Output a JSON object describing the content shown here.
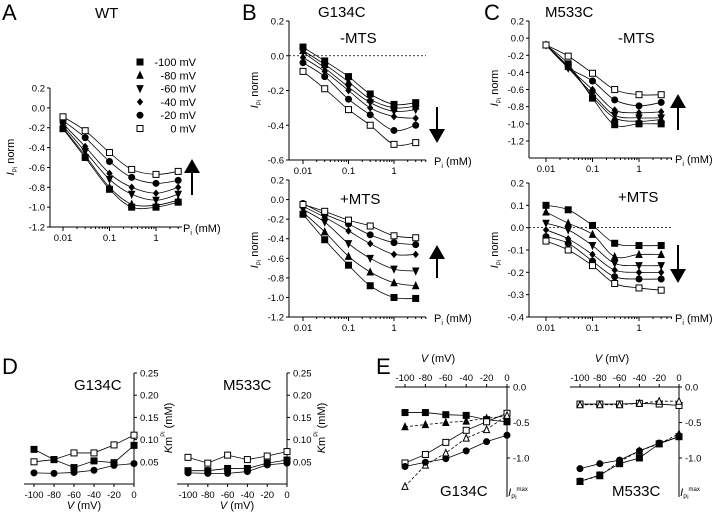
{
  "panel_letters": [
    "A",
    "B",
    "C",
    "D",
    "E"
  ],
  "titles": {
    "A": "WT",
    "B": "G134C",
    "C": "M533C",
    "B_top": "-MTS",
    "B_bottom": "+MTS",
    "C_top": "-MTS",
    "C_bottom": "+MTS",
    "D_left": "G134C",
    "D_right": "M533C",
    "E_left": "G134C",
    "E_right": "M533C"
  },
  "legend": [
    {
      "label": "-100 mV",
      "marker": "square-filled"
    },
    {
      "label": "-80 mV",
      "marker": "triangle-up"
    },
    {
      "label": "-60 mV",
      "marker": "triangle-down"
    },
    {
      "label": "-40 mV",
      "marker": "diamond"
    },
    {
      "label": "-20 mV",
      "marker": "circle"
    },
    {
      "label": "0 mV",
      "marker": "square-open"
    }
  ],
  "axis_labels": {
    "dose_x": "Pi (mM)",
    "dose_y": "I_Pi norm",
    "km_y": "Km^Pi (mM)",
    "v_x": "V (mV)",
    "imax": "I_Pi^max"
  },
  "chart_data": [
    {
      "id": "A",
      "type": "line",
      "xscale": "log",
      "x": [
        0.01,
        0.03,
        0.1,
        0.3,
        1,
        3
      ],
      "xticks": [
        "0.01",
        "0.1",
        "1"
      ],
      "yticks": [
        "0.2",
        "0.0",
        "-0.2",
        "-0.4",
        "-0.6",
        "-0.8",
        "-1.0",
        "-1.2"
      ],
      "ylim": [
        -1.2,
        0.2
      ],
      "arrow": "up",
      "series": [
        {
          "name": "-100 mV",
          "marker": "square-filled",
          "values": [
            -0.21,
            -0.5,
            -0.82,
            -1.0,
            -1.0,
            -0.95
          ]
        },
        {
          "name": "-80 mV",
          "marker": "triangle-up",
          "values": [
            -0.2,
            -0.48,
            -0.8,
            -0.97,
            -0.98,
            -0.93
          ]
        },
        {
          "name": "-60 mV",
          "marker": "triangle-down",
          "values": [
            -0.18,
            -0.44,
            -0.72,
            -0.87,
            -0.93,
            -0.87
          ]
        },
        {
          "name": "-40 mV",
          "marker": "diamond",
          "values": [
            -0.16,
            -0.39,
            -0.66,
            -0.8,
            -0.86,
            -0.8
          ]
        },
        {
          "name": "-20 mV",
          "marker": "circle",
          "values": [
            -0.13,
            -0.3,
            -0.54,
            -0.7,
            -0.76,
            -0.73
          ]
        },
        {
          "name": "0 mV",
          "marker": "square-open",
          "values": [
            -0.09,
            -0.23,
            -0.45,
            -0.62,
            -0.67,
            -0.64
          ]
        }
      ]
    },
    {
      "id": "B_top",
      "type": "line",
      "xscale": "log",
      "x": [
        0.01,
        0.03,
        0.1,
        0.3,
        1,
        3
      ],
      "xticks": [
        "0.01",
        "0.1",
        "1"
      ],
      "yticks": [
        "0.2",
        "0.0",
        "-0.2",
        "-0.4",
        "-0.6"
      ],
      "ylim": [
        -0.6,
        0.2
      ],
      "zero_line": true,
      "arrow": "down",
      "series": [
        {
          "name": "-100 mV",
          "marker": "square-filled",
          "values": [
            0.05,
            -0.03,
            -0.12,
            -0.22,
            -0.28,
            -0.27
          ]
        },
        {
          "name": "-80 mV",
          "marker": "triangle-up",
          "values": [
            0.03,
            -0.05,
            -0.15,
            -0.25,
            -0.3,
            -0.29
          ]
        },
        {
          "name": "-60 mV",
          "marker": "triangle-down",
          "values": [
            0.02,
            -0.07,
            -0.18,
            -0.27,
            -0.32,
            -0.31
          ]
        },
        {
          "name": "-40 mV",
          "marker": "diamond",
          "values": [
            -0.01,
            -0.09,
            -0.2,
            -0.3,
            -0.35,
            -0.36
          ]
        },
        {
          "name": "-20 mV",
          "marker": "circle",
          "values": [
            -0.04,
            -0.12,
            -0.25,
            -0.34,
            -0.43,
            -0.4
          ]
        },
        {
          "name": "0 mV",
          "marker": "square-open",
          "values": [
            -0.09,
            -0.19,
            -0.31,
            -0.4,
            -0.51,
            -0.5
          ]
        }
      ]
    },
    {
      "id": "B_bottom",
      "type": "line",
      "xscale": "log",
      "x": [
        0.01,
        0.03,
        0.1,
        0.3,
        1,
        3
      ],
      "xticks": [
        "0.01",
        "0.1",
        "1"
      ],
      "yticks": [
        "0.2",
        "0.0",
        "-0.2",
        "-0.4",
        "-0.6",
        "-0.8",
        "-1.0",
        "-1.2"
      ],
      "ylim": [
        -1.2,
        0.2
      ],
      "arrow": "up",
      "series": [
        {
          "name": "-100 mV",
          "marker": "square-filled",
          "values": [
            -0.15,
            -0.41,
            -0.67,
            -0.88,
            -1.0,
            -1.01
          ]
        },
        {
          "name": "-80 mV",
          "marker": "triangle-up",
          "values": [
            -0.13,
            -0.33,
            -0.58,
            -0.74,
            -0.85,
            -0.88
          ]
        },
        {
          "name": "-60 mV",
          "marker": "triangle-down",
          "values": [
            -0.1,
            -0.23,
            -0.45,
            -0.6,
            -0.71,
            -0.73
          ]
        },
        {
          "name": "-40 mV",
          "marker": "diamond",
          "values": [
            -0.07,
            -0.18,
            -0.32,
            -0.45,
            -0.56,
            -0.56
          ]
        },
        {
          "name": "-20 mV",
          "marker": "circle",
          "values": [
            -0.04,
            -0.15,
            -0.25,
            -0.36,
            -0.44,
            -0.46
          ]
        },
        {
          "name": "0 mV",
          "marker": "square-open",
          "values": [
            -0.05,
            -0.12,
            -0.21,
            -0.27,
            -0.37,
            -0.39
          ]
        }
      ]
    },
    {
      "id": "C_top",
      "type": "line",
      "xscale": "log",
      "x": [
        0.01,
        0.03,
        0.1,
        0.3,
        1,
        3
      ],
      "xticks": [
        "0.01",
        "0.1",
        "1"
      ],
      "yticks": [
        "0.2",
        "0.0",
        "-0.2",
        "-0.4",
        "-0.6",
        "-0.8",
        "-1.0",
        "-1.2"
      ],
      "ylim": [
        -1.4,
        0.2
      ],
      "arrow": "up",
      "series": [
        {
          "name": "-100 mV",
          "marker": "square-filled",
          "values": [
            -0.08,
            -0.3,
            -0.7,
            -1.01,
            -1.0,
            -1.0
          ]
        },
        {
          "name": "-80 mV",
          "marker": "triangle-up",
          "values": [
            -0.08,
            -0.33,
            -0.68,
            -0.93,
            -0.97,
            -0.95
          ]
        },
        {
          "name": "-60 mV",
          "marker": "triangle-down",
          "values": [
            -0.08,
            -0.35,
            -0.65,
            -0.9,
            -0.93,
            -0.93
          ]
        },
        {
          "name": "-40 mV",
          "marker": "diamond",
          "values": [
            -0.08,
            -0.34,
            -0.6,
            -0.84,
            -0.87,
            -0.86
          ]
        },
        {
          "name": "-20 mV",
          "marker": "circle",
          "values": [
            -0.08,
            -0.34,
            -0.5,
            -0.72,
            -0.79,
            -0.75
          ]
        },
        {
          "name": "0 mV",
          "marker": "square-open",
          "values": [
            -0.08,
            -0.21,
            -0.41,
            -0.6,
            -0.66,
            -0.66
          ]
        }
      ]
    },
    {
      "id": "C_bottom",
      "type": "line",
      "xscale": "log",
      "x": [
        0.01,
        0.03,
        0.1,
        0.3,
        1,
        3
      ],
      "xticks": [
        "0.01",
        "0.1",
        "1"
      ],
      "yticks": [
        "0.2",
        "0.1",
        "0.0",
        "-0.1",
        "-0.2",
        "-0.3",
        "-0.4"
      ],
      "ylim": [
        -0.4,
        0.2
      ],
      "zero_line": true,
      "arrow": "down",
      "series": [
        {
          "name": "-100 mV",
          "marker": "square-filled",
          "values": [
            0.1,
            0.08,
            0.01,
            -0.07,
            -0.08,
            -0.08
          ]
        },
        {
          "name": "-80 mV",
          "marker": "triangle-up",
          "values": [
            0.07,
            0.02,
            -0.03,
            -0.13,
            -0.12,
            -0.12
          ]
        },
        {
          "name": "-60 mV",
          "marker": "triangle-down",
          "values": [
            0.02,
            -0.01,
            -0.08,
            -0.16,
            -0.17,
            -0.17
          ]
        },
        {
          "name": "-40 mV",
          "marker": "diamond",
          "values": [
            -0.01,
            -0.05,
            -0.12,
            -0.19,
            -0.2,
            -0.2
          ]
        },
        {
          "name": "-20 mV",
          "marker": "circle",
          "values": [
            -0.04,
            -0.07,
            -0.15,
            -0.22,
            -0.23,
            -0.23
          ]
        },
        {
          "name": "0 mV",
          "marker": "square-open",
          "values": [
            -0.06,
            -0.1,
            -0.17,
            -0.25,
            -0.27,
            -0.28
          ]
        }
      ]
    },
    {
      "id": "D_left",
      "type": "line",
      "x": [
        -100,
        -80,
        -60,
        -40,
        -20,
        0
      ],
      "xticks": [
        "-100",
        "-80",
        "-60",
        "-40",
        "-20",
        "0"
      ],
      "yticks": [
        "0.25",
        "0.20",
        "0.15",
        "0.10",
        "0.05"
      ],
      "ylim": [
        0,
        0.25
      ],
      "series": [
        {
          "marker": "square-open",
          "values": [
            0.05,
            0.055,
            0.07,
            0.07,
            0.088,
            0.11
          ]
        },
        {
          "marker": "square-filled",
          "values": [
            0.078,
            0.055,
            0.037,
            0.052,
            0.048,
            0.087
          ]
        },
        {
          "marker": "circle",
          "values": [
            0.025,
            0.024,
            0.026,
            0.031,
            0.042,
            0.046
          ]
        }
      ]
    },
    {
      "id": "D_right",
      "type": "line",
      "x": [
        -100,
        -80,
        -60,
        -40,
        -20,
        0
      ],
      "xticks": [
        "-100",
        "-80",
        "-60",
        "-40",
        "-20",
        "0"
      ],
      "yticks": [
        "0.25",
        "0.20",
        "0.15",
        "0.10",
        "0.05"
      ],
      "ylim": [
        0,
        0.25
      ],
      "series": [
        {
          "marker": "square-open",
          "values": [
            0.06,
            0.047,
            0.065,
            0.055,
            0.063,
            0.073
          ]
        },
        {
          "marker": "square-filled",
          "values": [
            0.03,
            0.03,
            0.035,
            0.035,
            0.047,
            0.054
          ]
        },
        {
          "marker": "circle",
          "values": [
            0.025,
            0.024,
            0.024,
            0.028,
            0.043,
            0.047
          ]
        }
      ]
    },
    {
      "id": "E_left",
      "type": "line",
      "x": [
        -100,
        -80,
        -60,
        -40,
        -20,
        0
      ],
      "xticks": [
        "-100",
        "-80",
        "-60",
        "-40",
        "-20",
        "0"
      ],
      "yticks": [
        "0.0",
        "-0.5",
        "-1.0"
      ],
      "ylim": [
        -1.55,
        0
      ],
      "series": [
        {
          "marker": "square-filled",
          "dash": false,
          "values": [
            -0.36,
            -0.36,
            -0.39,
            -0.4,
            -0.46,
            -0.49
          ]
        },
        {
          "marker": "triangle-up",
          "dash": true,
          "values": [
            -0.56,
            -0.53,
            -0.5,
            -0.48,
            -0.44,
            -0.41
          ]
        },
        {
          "marker": "square-open",
          "dash": false,
          "values": [
            -1.07,
            -0.95,
            -0.78,
            -0.61,
            -0.49,
            -0.37
          ]
        },
        {
          "marker": "triangle-open",
          "dash": true,
          "values": [
            -1.4,
            -1.1,
            -0.93,
            -0.72,
            -0.6,
            -0.4
          ]
        },
        {
          "marker": "circle",
          "dash": false,
          "values": [
            -1.12,
            -1.06,
            -1.01,
            -0.9,
            -0.77,
            -0.68
          ]
        }
      ]
    },
    {
      "id": "E_right",
      "type": "line",
      "x": [
        -100,
        -80,
        -60,
        -40,
        -20,
        0
      ],
      "xticks": [
        "-100",
        "-80",
        "-60",
        "-40",
        "-20",
        "0"
      ],
      "yticks": [
        "0.0",
        "-0.5",
        "-1.0"
      ],
      "ylim": [
        -1.55,
        0
      ],
      "series": [
        {
          "marker": "square-open",
          "dash": false,
          "values": [
            -0.24,
            -0.24,
            -0.24,
            -0.23,
            -0.24,
            -0.26
          ]
        },
        {
          "marker": "triangle-open",
          "dash": true,
          "values": [
            -0.25,
            -0.25,
            -0.25,
            -0.23,
            -0.2,
            -0.2
          ]
        },
        {
          "marker": "circle",
          "dash": false,
          "values": [
            -1.15,
            -1.08,
            -1.03,
            -0.9,
            -0.79,
            -0.7
          ]
        },
        {
          "marker": "square-filled",
          "dash": false,
          "values": [
            -1.33,
            -1.24,
            -1.08,
            -1.0,
            -0.8,
            -0.7
          ]
        },
        {
          "marker": "triangle-up",
          "dash": true,
          "values": [
            -1.33,
            -1.25,
            -1.05,
            -0.9,
            -0.8,
            -0.66
          ]
        }
      ]
    }
  ]
}
